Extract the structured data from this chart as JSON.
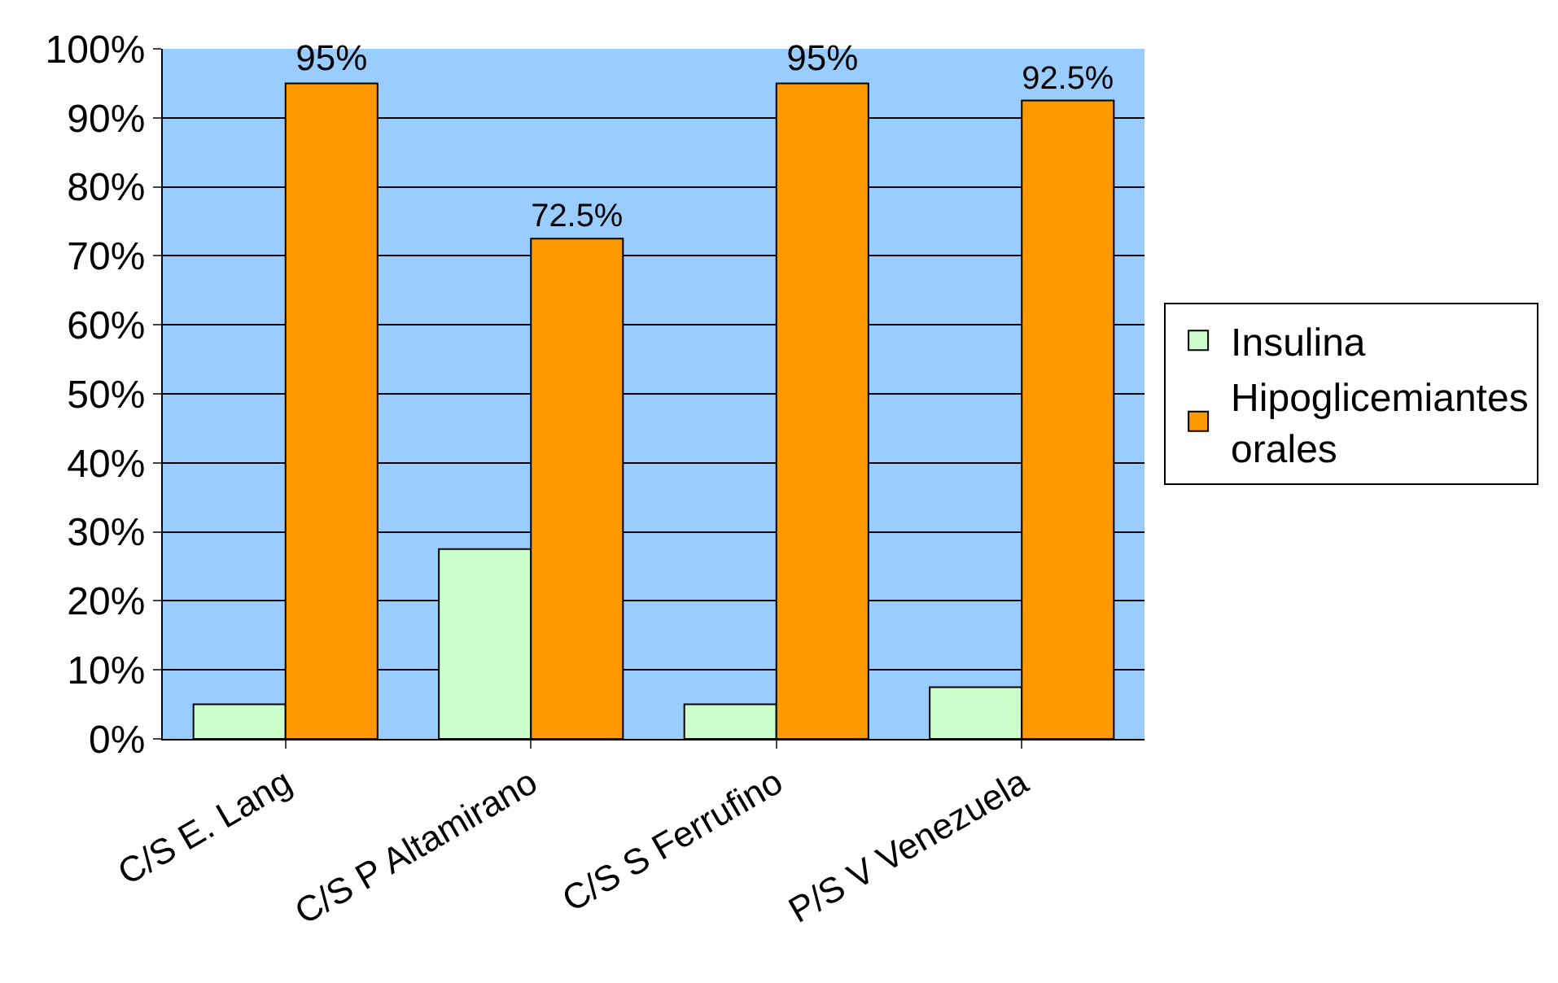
{
  "chart_data": {
    "type": "bar",
    "categories": [
      "C/S E. Lang",
      "C/S P Altamirano",
      "C/S S Ferrufino",
      "P/S V Venezuela"
    ],
    "series": [
      {
        "name": "Insulina",
        "color": "#ccffcc",
        "values": [
          5,
          27.5,
          5,
          7.5
        ]
      },
      {
        "name": "Hipoglicemiantes\norales",
        "color": "#ff9900",
        "values": [
          95,
          72.5,
          95,
          92.5
        ],
        "value_labels": [
          "95%",
          "72.5%",
          "95%",
          "92.5%"
        ]
      }
    ],
    "ylim": [
      0,
      100
    ],
    "yticks": [
      {
        "value": 0,
        "label": "0%"
      },
      {
        "value": 10,
        "label": "10%"
      },
      {
        "value": 20,
        "label": "20%"
      },
      {
        "value": 30,
        "label": "30%"
      },
      {
        "value": 40,
        "label": "40%"
      },
      {
        "value": 50,
        "label": "50%"
      },
      {
        "value": 60,
        "label": "60%"
      },
      {
        "value": 70,
        "label": "70%"
      },
      {
        "value": 80,
        "label": "80%"
      },
      {
        "value": 90,
        "label": "90%"
      },
      {
        "value": 100,
        "label": "100%"
      }
    ],
    "grid": "y",
    "legend": "right"
  }
}
